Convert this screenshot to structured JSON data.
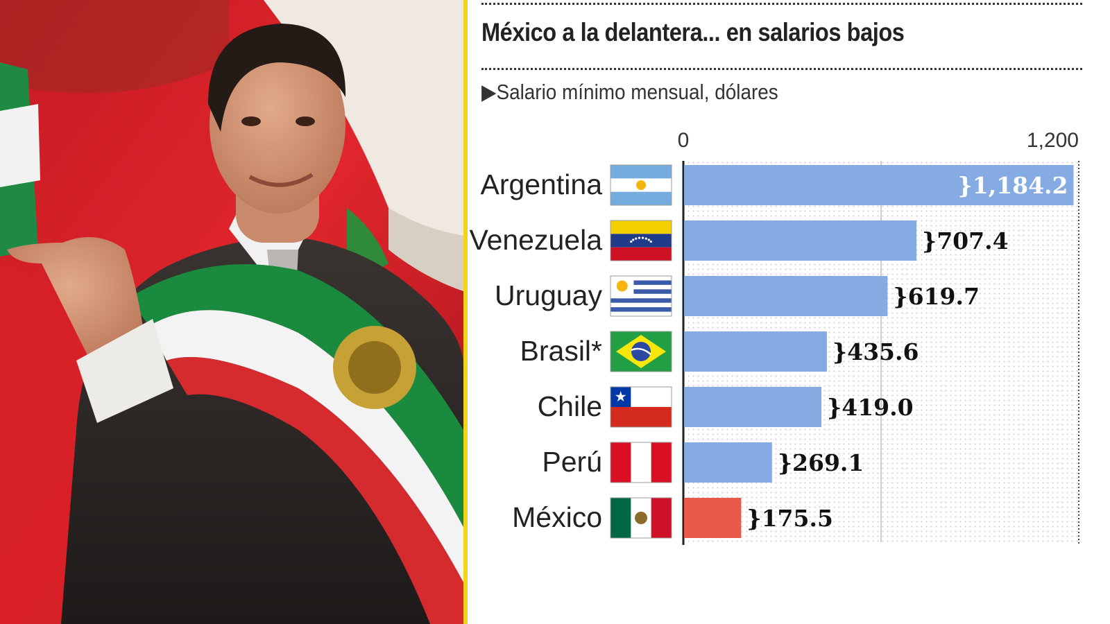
{
  "colors": {
    "bar": "#86aae2",
    "highlight": "#e85a47",
    "accent": "#f3d41a"
  },
  "photo": {
    "icon": "photo-of-president-with-sash"
  },
  "chart_data": {
    "type": "bar",
    "orientation": "horizontal",
    "title": "México a la delantera... en salarios bajos",
    "subtitle": "Salario mínimo mensual, dólares",
    "subtitle_marker": "▶",
    "xlim": [
      0,
      1200
    ],
    "x_ticks": [
      {
        "value": 0,
        "label": "0"
      },
      {
        "value": 1200,
        "label": "1,200"
      }
    ],
    "gridlines": [
      600
    ],
    "value_prefix": "}",
    "categories": [
      "Argentina",
      "Venezuela",
      "Uruguay",
      "Brasil*",
      "Chile",
      "Perú",
      "México"
    ],
    "values": [
      1184.2,
      707.4,
      619.7,
      435.6,
      419.0,
      269.1,
      175.5
    ],
    "value_labels": [
      "1,184.2",
      "707.4",
      "619.7",
      "435.6",
      "419.0",
      "269.1",
      "175.5"
    ],
    "flags": [
      "argentina-flag-icon",
      "venezuela-flag-icon",
      "uruguay-flag-icon",
      "brazil-flag-icon",
      "chile-flag-icon",
      "peru-flag-icon",
      "mexico-flag-icon"
    ],
    "highlight_category": "México"
  }
}
